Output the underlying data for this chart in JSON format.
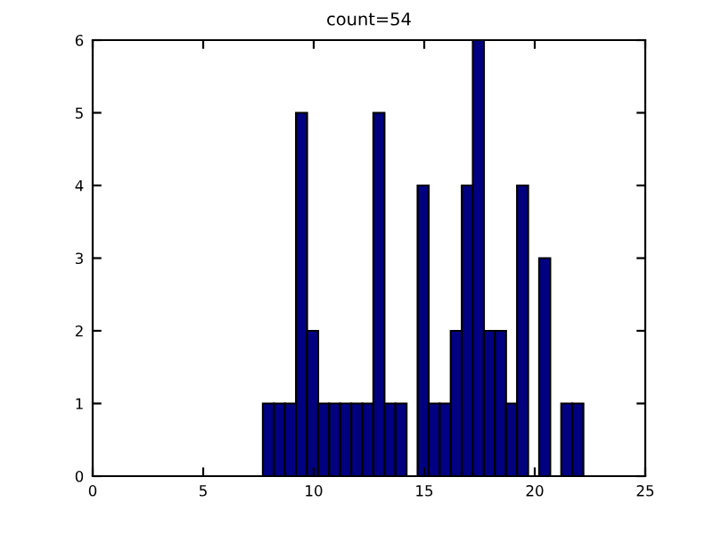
{
  "chart_data": {
    "type": "histogram",
    "title": "count=54",
    "bins": [
      7.7,
      8.2,
      8.7,
      9.2,
      9.7,
      10.2,
      10.7,
      11.2,
      11.7,
      12.2,
      12.7,
      13.2,
      13.7,
      14.2,
      14.7,
      15.2,
      15.7,
      16.2,
      16.7,
      17.2,
      17.7,
      18.2,
      18.7,
      19.2,
      19.7,
      20.2,
      20.7,
      21.2,
      21.7,
      22.2
    ],
    "values": [
      1,
      1,
      1,
      5,
      2,
      1,
      1,
      1,
      1,
      1,
      5,
      1,
      1,
      0,
      4,
      1,
      1,
      2,
      4,
      6,
      2,
      2,
      1,
      4,
      0,
      3,
      0,
      1,
      1
    ],
    "color": "#000080",
    "xlim": [
      0,
      25
    ],
    "xticks": [
      0,
      5,
      10,
      15,
      20,
      25
    ],
    "ylim": [
      0,
      6
    ],
    "yticks": [
      0,
      1,
      2,
      3,
      4,
      5,
      6
    ]
  }
}
